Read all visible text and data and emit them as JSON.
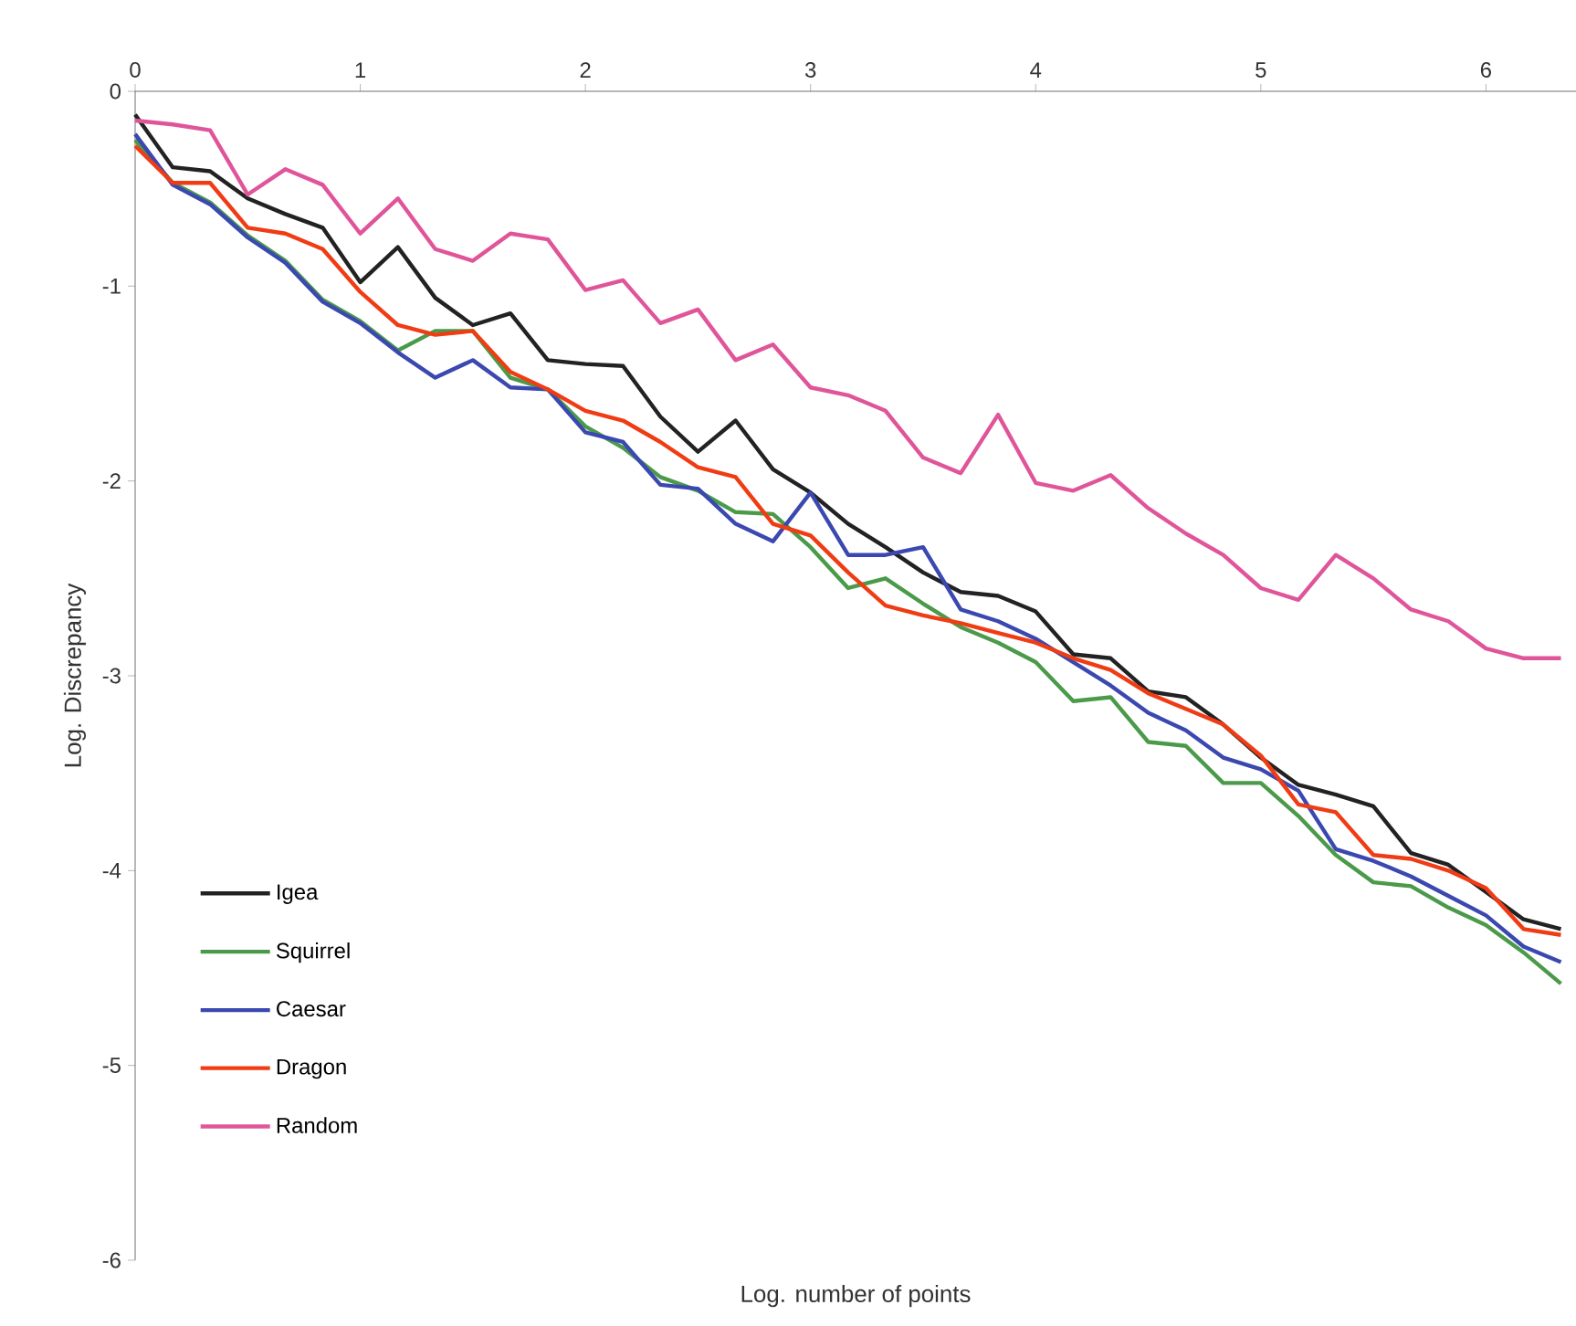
{
  "chart_data": {
    "type": "line",
    "xlabel": "Log. number of points",
    "ylabel": "Log. Discrepancy",
    "x": [
      0,
      0.167,
      0.333,
      0.5,
      0.667,
      0.833,
      1,
      1.167,
      1.333,
      1.5,
      1.667,
      1.833,
      2,
      2.167,
      2.333,
      2.5,
      2.667,
      2.833,
      3,
      3.167,
      3.333,
      3.5,
      3.667,
      3.833,
      4,
      4.167,
      4.333,
      4.5,
      4.667,
      4.833,
      5,
      5.167,
      5.333,
      5.5,
      5.667,
      5.833,
      6,
      6.167,
      6.333
    ],
    "series": [
      {
        "name": "Igea",
        "color": "#222222",
        "values": [
          -0.12,
          -0.39,
          -0.41,
          -0.55,
          -0.63,
          -0.7,
          -0.98,
          -0.8,
          -1.06,
          -1.2,
          -1.14,
          -1.38,
          -1.4,
          -1.41,
          -1.67,
          -1.85,
          -1.69,
          -1.94,
          -2.06,
          -2.22,
          -2.34,
          -2.47,
          -2.57,
          -2.59,
          -2.67,
          -2.89,
          -2.91,
          -3.08,
          -3.11,
          -3.25,
          -3.42,
          -3.56,
          -3.61,
          -3.67,
          -3.91,
          -3.97,
          -4.11,
          -4.25,
          -4.3
        ]
      },
      {
        "name": "Squirrel",
        "color": "#4a9a4a",
        "values": [
          -0.25,
          -0.47,
          -0.57,
          -0.74,
          -0.87,
          -1.07,
          -1.18,
          -1.33,
          -1.23,
          -1.23,
          -1.47,
          -1.53,
          -1.72,
          -1.83,
          -1.98,
          -2.05,
          -2.16,
          -2.17,
          -2.34,
          -2.55,
          -2.5,
          -2.63,
          -2.75,
          -2.83,
          -2.93,
          -3.13,
          -3.11,
          -3.34,
          -3.36,
          -3.55,
          -3.55,
          -3.72,
          -3.92,
          -4.06,
          -4.08,
          -4.19,
          -4.28,
          -4.42,
          -4.58
        ]
      },
      {
        "name": "Caesar",
        "color": "#3a48b0",
        "values": [
          -0.22,
          -0.48,
          -0.58,
          -0.75,
          -0.88,
          -1.08,
          -1.19,
          -1.34,
          -1.47,
          -1.38,
          -1.52,
          -1.53,
          -1.75,
          -1.8,
          -2.02,
          -2.04,
          -2.22,
          -2.31,
          -2.06,
          -2.38,
          -2.38,
          -2.34,
          -2.66,
          -2.72,
          -2.81,
          -2.93,
          -3.05,
          -3.19,
          -3.28,
          -3.42,
          -3.48,
          -3.59,
          -3.89,
          -3.95,
          -4.03,
          -4.13,
          -4.23,
          -4.39,
          -4.47
        ]
      },
      {
        "name": "Dragon",
        "color": "#f03c14",
        "values": [
          -0.28,
          -0.47,
          -0.47,
          -0.7,
          -0.73,
          -0.81,
          -1.03,
          -1.2,
          -1.25,
          -1.23,
          -1.44,
          -1.53,
          -1.64,
          -1.69,
          -1.8,
          -1.93,
          -1.98,
          -2.22,
          -2.28,
          -2.47,
          -2.64,
          -2.69,
          -2.73,
          -2.78,
          -2.83,
          -2.91,
          -2.97,
          -3.09,
          -3.17,
          -3.25,
          -3.41,
          -3.66,
          -3.7,
          -3.92,
          -3.94,
          -4.0,
          -4.09,
          -4.3,
          -4.33
        ]
      },
      {
        "name": "Random",
        "color": "#e0559a",
        "values": [
          -0.15,
          -0.17,
          -0.2,
          -0.53,
          -0.4,
          -0.48,
          -0.73,
          -0.55,
          -0.81,
          -0.87,
          -0.73,
          -0.76,
          -1.02,
          -0.97,
          -1.19,
          -1.12,
          -1.38,
          -1.3,
          -1.52,
          -1.56,
          -1.64,
          -1.88,
          -1.96,
          -1.66,
          -2.01,
          -2.05,
          -1.97,
          -2.14,
          -2.27,
          -2.38,
          -2.55,
          -2.61,
          -2.38,
          -2.5,
          -2.66,
          -2.72,
          -2.86,
          -2.91,
          -2.91
        ]
      }
    ],
    "xlim": [
      0,
      6.4
    ],
    "ylim": [
      -6,
      0
    ],
    "xticks": [
      0,
      1,
      2,
      3,
      4,
      5,
      6
    ],
    "yticks": [
      0,
      -1,
      -2,
      -3,
      -4,
      -5,
      -6
    ],
    "legend": "bottom left",
    "grid": false
  }
}
